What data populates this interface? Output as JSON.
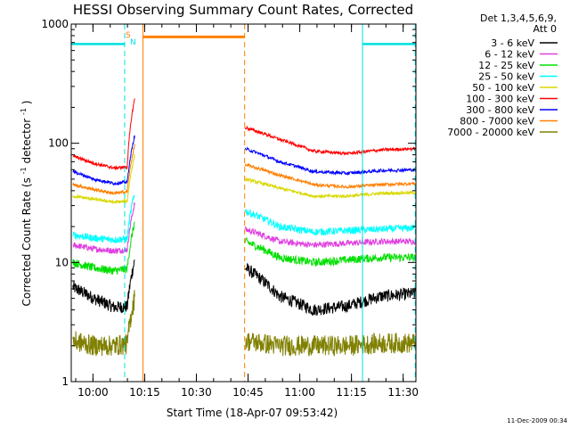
{
  "chart_data": {
    "type": "line",
    "title": "HESSI Observing Summary Count Rates, Corrected",
    "xlabel": "Start Time (18-Apr-07 09:53:42)",
    "ylabel_main": "Corrected Count Rate (s",
    "ylabel_sup1": "-1",
    "ylabel_mid": " detector",
    "ylabel_sup2": "-1",
    "ylabel_end": ")",
    "y_scale": "log",
    "ylim": [
      1,
      1000
    ],
    "xlim_min": [
      0,
      100
    ],
    "x_ticks": [
      {
        "label": "10:00",
        "min": 6.3
      },
      {
        "label": "10:15",
        "min": 21.3
      },
      {
        "label": "10:30",
        "min": 36.3
      },
      {
        "label": "10:45",
        "min": 51.3
      },
      {
        "label": "11:00",
        "min": 66.3
      },
      {
        "label": "11:15",
        "min": 81.3
      },
      {
        "label": "11:30",
        "min": 96.3
      }
    ],
    "y_ticks": [
      {
        "label": "1",
        "value": 1
      },
      {
        "label": "10",
        "value": 10
      },
      {
        "label": "100",
        "value": 100
      },
      {
        "label": "1000",
        "value": 1000
      }
    ],
    "legend": {
      "header_line1": "Det 1,3,4,5,6,9,",
      "header_line2": "Att 0",
      "placement": "right"
    },
    "series": [
      {
        "name": "3 - 6 keV",
        "color": "#000000",
        "before": [
          6.2,
          5.0,
          4.2,
          4.3
        ],
        "after": [
          9.0,
          5.2,
          4.0,
          4.3,
          5.2,
          5.5
        ],
        "noise": 0.12
      },
      {
        "name": "6 - 12 keV",
        "color": "#e040e0",
        "before": [
          14,
          13,
          12.5,
          13
        ],
        "after": [
          19,
          15,
          14,
          14.5,
          15,
          15
        ],
        "noise": 0.06
      },
      {
        "name": "12 - 25 keV",
        "color": "#00e000",
        "before": [
          10,
          9,
          8.5,
          9
        ],
        "after": [
          15,
          11,
          10,
          10.5,
          11,
          11
        ],
        "noise": 0.08
      },
      {
        "name": "25 - 50 keV",
        "color": "#00ffff",
        "before": [
          17,
          16,
          15.5,
          16
        ],
        "after": [
          27,
          20,
          18,
          18.5,
          19,
          19.5
        ],
        "noise": 0.07
      },
      {
        "name": "50 - 100 keV",
        "color": "#d8d800",
        "before": [
          36,
          34,
          32,
          33
        ],
        "after": [
          50,
          42,
          36,
          36,
          38,
          38.5
        ],
        "noise": 0.03
      },
      {
        "name": "100 - 300 keV",
        "color": "#ff0000",
        "before": [
          78,
          68,
          62,
          64
        ],
        "after": [
          135,
          108,
          86,
          82,
          88,
          90
        ],
        "noise": 0.03
      },
      {
        "name": "300 - 800 keV",
        "color": "#0000ff",
        "before": [
          58,
          50,
          46,
          48
        ],
        "after": [
          90,
          70,
          58,
          56,
          59,
          60
        ],
        "noise": 0.03
      },
      {
        "name": "800 - 7000 keV",
        "color": "#ff8000",
        "before": [
          45,
          41,
          38,
          40
        ],
        "after": [
          66,
          54,
          45,
          43,
          45,
          46
        ],
        "noise": 0.03
      },
      {
        "name": "7000 - 20000 keV",
        "color": "#808000",
        "before": [
          2.2,
          2.0,
          2.0,
          2.1
        ],
        "after": [
          2.2,
          2.0,
          2.0,
          2.0,
          2.1,
          2.1
        ],
        "noise": 0.2
      }
    ],
    "segments": {
      "before_start_min": 0.5,
      "before_end_min": 18.4,
      "after_start_min": 50.5,
      "after_end_min": 99.8
    },
    "flags": {
      "saa": {
        "label": "S",
        "color": "#ff8000"
      },
      "night": {
        "label": "N",
        "color": "#00e0e0"
      },
      "cyan_bars": [
        [
          0,
          15.5
        ],
        [
          84.5,
          99.8
        ]
      ],
      "orange_bar": [
        20.8,
        50.3
      ],
      "cyan_dashed_lines": [
        15.5,
        99.8
      ],
      "cyan_solid_lines": [
        84.5
      ],
      "orange_solid_lines": [
        20.8
      ],
      "orange_dashed_lines": [
        50.3
      ]
    },
    "timestamp": "11-Dec-2009 00:34"
  }
}
